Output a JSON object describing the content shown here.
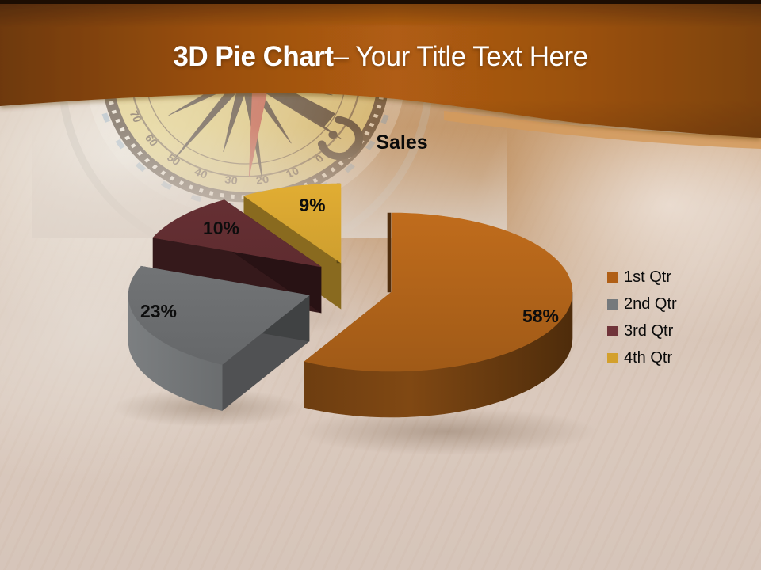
{
  "header": {
    "title_bold": "3D Pie Chart",
    "title_rest": "– Your Title Text Here"
  },
  "chart_data": {
    "type": "pie",
    "style": "3d-exploded-pie",
    "title": "Sales",
    "categories": [
      "1st Qtr",
      "2nd Qtr",
      "3rd Qtr",
      "4th Qtr"
    ],
    "values": [
      58,
      23,
      10,
      9
    ],
    "labels": [
      "58%",
      "23%",
      "10%",
      "9%"
    ],
    "colors": [
      "#b05f16",
      "#75797c",
      "#70343a",
      "#d3a02c"
    ],
    "slice_colors": [
      "#b2641a",
      "#6f7173",
      "#5f2c30",
      "#d0a02f"
    ],
    "legend_position": "right",
    "label_style": "percent-bold-black",
    "start_angle": "top",
    "direction": "clockwise"
  },
  "compass": {
    "dial_numbers": [
      "0",
      "10",
      "20",
      "30",
      "40",
      "50",
      "60",
      "70"
    ]
  },
  "colors": {
    "header_orange": "#b05d12",
    "header_dark_strip": "#1c0d02",
    "header_wave_highlight": "#d49a5c",
    "background_parchment": "#d8c5b8",
    "title_text": "#ffffff",
    "body_text": "#0a0a0a"
  }
}
